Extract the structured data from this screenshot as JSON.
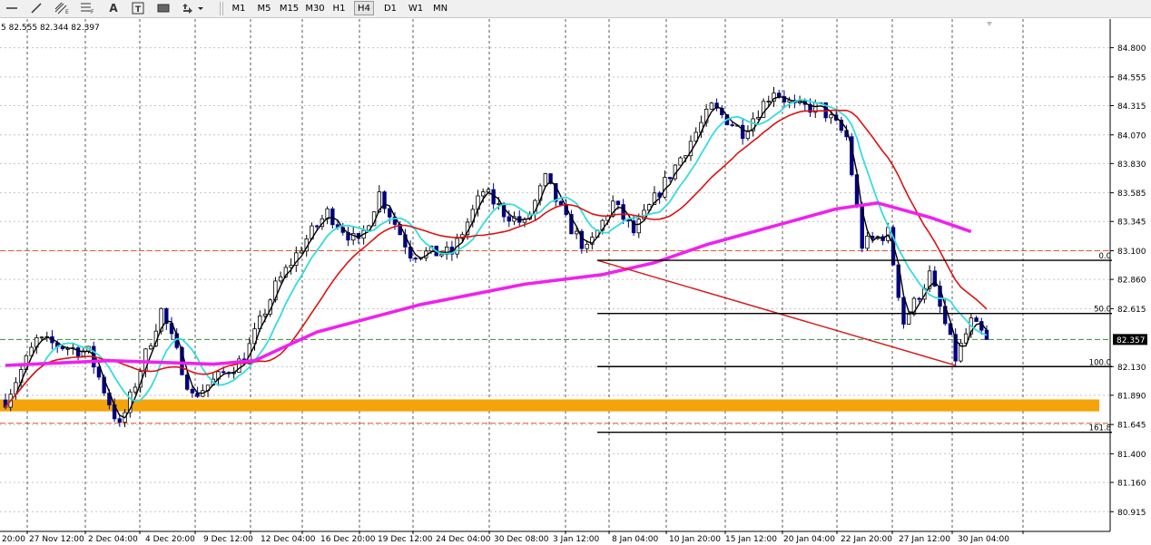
{
  "toolbar": {
    "tools": [
      {
        "name": "horizontal-line-icon"
      },
      {
        "name": "trendline-icon"
      },
      {
        "name": "equidistant-channel-icon",
        "badge": "E"
      },
      {
        "name": "fibonacci-retracement-icon",
        "badge": "F"
      },
      {
        "name": "text-tool-icon",
        "glyph": "A"
      },
      {
        "name": "text-label-icon",
        "glyph": "T"
      },
      {
        "name": "rectangle-icon"
      },
      {
        "name": "arrows-dropdown-icon"
      }
    ],
    "timeframes": [
      "M1",
      "M5",
      "M15",
      "M30",
      "H1",
      "H4",
      "D1",
      "W1",
      "MN"
    ],
    "active_timeframe": "H4"
  },
  "ohlc_readout": "5 82.555 82.344 82.397",
  "chart_data": {
    "type": "candlestick",
    "ylim": [
      80.75,
      85.04
    ],
    "y_ticks": [
      "84.800",
      "84.555",
      "84.315",
      "84.070",
      "83.830",
      "83.585",
      "83.345",
      "83.100",
      "82.860",
      "82.615",
      "82.130",
      "81.890",
      "81.645",
      "81.400",
      "81.160",
      "80.915"
    ],
    "current_price": "82.357",
    "x_ticks": [
      "20:00",
      "27 Nov 12:00",
      "2 Dec 04:00",
      "4 Dec 20:00",
      "9 Dec 12:00",
      "12 Dec 04:00",
      "16 Dec 20:00",
      "19 Dec 12:00",
      "24 Dec 04:00",
      "30 Dec 08:00",
      "3 Jan 12:00",
      "8 Jan 04:00",
      "10 Jan 20:00",
      "15 Jan 12:00",
      "20 Jan 04:00",
      "22 Jan 20:00",
      "27 Jan 12:00",
      "30 Jan 04:00"
    ],
    "fibonacci_levels": [
      {
        "label": "0.0",
        "price": 83.02
      },
      {
        "label": "50.0",
        "price": 82.575
      },
      {
        "label": "100.0",
        "price": 82.13
      },
      {
        "label": "161.8",
        "price": 81.58
      }
    ],
    "support_zone": {
      "low": 81.755,
      "high": 81.855,
      "color": "#f5a30a"
    },
    "horizontal_dashed_levels": [
      {
        "price": 83.1,
        "color": "#e05a2a"
      },
      {
        "price": 81.655,
        "color": "#e05a2a"
      },
      {
        "price": 82.357,
        "color": "#2f8f2f"
      }
    ],
    "candles": {
      "count": 190,
      "bull_color": "#000000",
      "bear_color": "#000080",
      "anchors": [
        {
          "i": 0,
          "price": 81.85
        },
        {
          "i": 6,
          "price": 82.35
        },
        {
          "i": 16,
          "price": 82.25
        },
        {
          "i": 22,
          "price": 81.62
        },
        {
          "i": 30,
          "price": 82.6
        },
        {
          "i": 36,
          "price": 81.88
        },
        {
          "i": 46,
          "price": 82.2
        },
        {
          "i": 52,
          "price": 82.8
        },
        {
          "i": 58,
          "price": 83.2
        },
        {
          "i": 62,
          "price": 83.42
        },
        {
          "i": 68,
          "price": 83.15
        },
        {
          "i": 72,
          "price": 83.58
        },
        {
          "i": 78,
          "price": 83.08
        },
        {
          "i": 86,
          "price": 83.08
        },
        {
          "i": 92,
          "price": 83.6
        },
        {
          "i": 96,
          "price": 83.42
        },
        {
          "i": 100,
          "price": 83.32
        },
        {
          "i": 104,
          "price": 83.7
        },
        {
          "i": 108,
          "price": 83.35
        },
        {
          "i": 112,
          "price": 83.1
        },
        {
          "i": 117,
          "price": 83.5
        },
        {
          "i": 121,
          "price": 83.25
        },
        {
          "i": 126,
          "price": 83.6
        },
        {
          "i": 131,
          "price": 83.95
        },
        {
          "i": 136,
          "price": 84.3
        },
        {
          "i": 142,
          "price": 84.1
        },
        {
          "i": 148,
          "price": 84.45
        },
        {
          "i": 152,
          "price": 84.3
        },
        {
          "i": 157,
          "price": 84.3
        },
        {
          "i": 162,
          "price": 84.05
        },
        {
          "i": 165,
          "price": 83.15
        },
        {
          "i": 170,
          "price": 83.25
        },
        {
          "i": 173,
          "price": 82.5
        },
        {
          "i": 178,
          "price": 82.9
        },
        {
          "i": 183,
          "price": 82.2
        },
        {
          "i": 186,
          "price": 82.5
        },
        {
          "i": 189,
          "price": 82.36
        }
      ]
    },
    "series": [
      {
        "kind": "moving-average",
        "color": "#000000",
        "period": 3
      },
      {
        "kind": "moving-average",
        "color": "#33dddd",
        "period": 8
      },
      {
        "kind": "moving-average",
        "color": "#dd1111",
        "period": 20
      },
      {
        "kind": "moving-average",
        "color": "#ee22ee",
        "points": [
          [
            0,
            82.14
          ],
          [
            20,
            82.18
          ],
          [
            40,
            82.15
          ],
          [
            48,
            82.18
          ],
          [
            60,
            82.42
          ],
          [
            80,
            82.65
          ],
          [
            100,
            82.82
          ],
          [
            115,
            82.9
          ],
          [
            125,
            83.0
          ],
          [
            135,
            83.15
          ],
          [
            150,
            83.33
          ],
          [
            160,
            83.45
          ],
          [
            168,
            83.5
          ],
          [
            178,
            83.38
          ],
          [
            186,
            83.26
          ]
        ]
      }
    ],
    "drawn_trendline": {
      "color": "#d42020",
      "from": [
        114,
        83.02
      ],
      "to": [
        183,
        82.14
      ]
    }
  }
}
